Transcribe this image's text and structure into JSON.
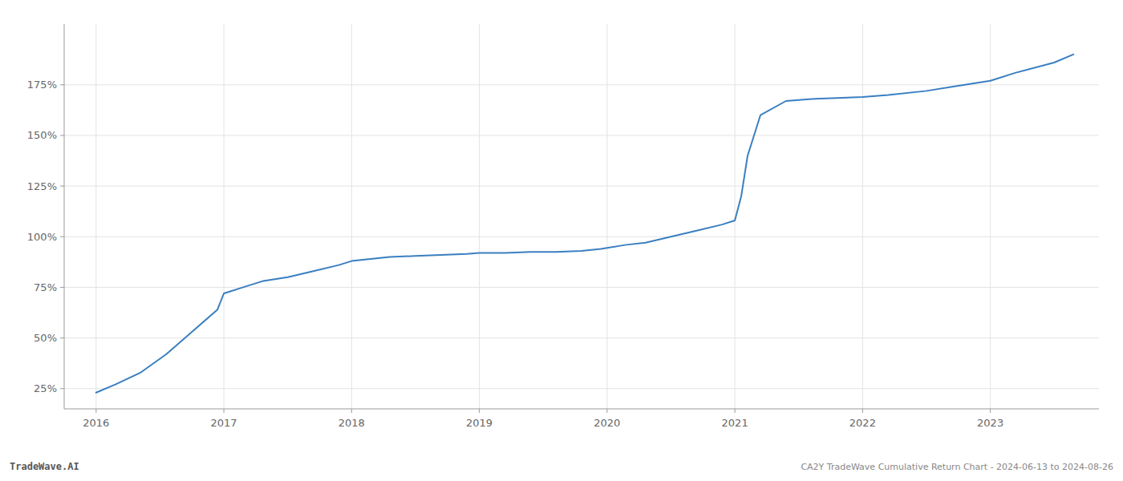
{
  "chart_data": {
    "type": "line",
    "annotations": [
      "TradeWave.AI",
      "CA2Y TradeWave Cumulative Return Chart - 2024-06-13 to 2024-08-26"
    ],
    "x": [
      2016.0,
      2016.15,
      2016.35,
      2016.55,
      2016.75,
      2016.95,
      2017.0,
      2017.05,
      2017.15,
      2017.3,
      2017.5,
      2017.7,
      2017.9,
      2018.0,
      2018.15,
      2018.3,
      2018.5,
      2018.7,
      2018.9,
      2019.0,
      2019.2,
      2019.4,
      2019.6,
      2019.8,
      2019.95,
      2020.0,
      2020.05,
      2020.1,
      2020.15,
      2020.3,
      2020.5,
      2020.7,
      2020.9,
      2021.0,
      2021.05,
      2021.1,
      2021.2,
      2021.4,
      2021.6,
      2021.8,
      2022.0,
      2022.2,
      2022.5,
      2022.7,
      2023.0,
      2023.2,
      2023.5,
      2023.65
    ],
    "values": [
      23,
      27,
      33,
      42,
      53,
      64,
      72,
      73,
      75,
      78,
      80,
      83,
      86,
      88,
      89,
      90,
      90.5,
      91,
      91.5,
      92,
      92,
      92.5,
      92.5,
      93,
      94,
      94.5,
      95,
      95.5,
      96,
      97,
      100,
      103,
      106,
      108,
      120,
      140,
      160,
      167,
      168,
      168.5,
      169,
      170,
      172,
      174,
      177,
      181,
      186,
      190
    ],
    "color": "#3a7fc1",
    "xlim": [
      2015.75,
      2023.85
    ],
    "ylim": [
      15,
      205
    ],
    "xticks": [
      2016,
      2017,
      2018,
      2019,
      2020,
      2021,
      2022,
      2023
    ],
    "yticks": [
      {
        "value": 25,
        "label": "25%"
      },
      {
        "value": 50,
        "label": "50%"
      },
      {
        "value": 75,
        "label": "75%"
      },
      {
        "value": 100,
        "label": "100%"
      },
      {
        "value": 125,
        "label": "125%"
      },
      {
        "value": 150,
        "label": "150%"
      },
      {
        "value": 175,
        "label": "175%"
      }
    ],
    "grid": true
  }
}
